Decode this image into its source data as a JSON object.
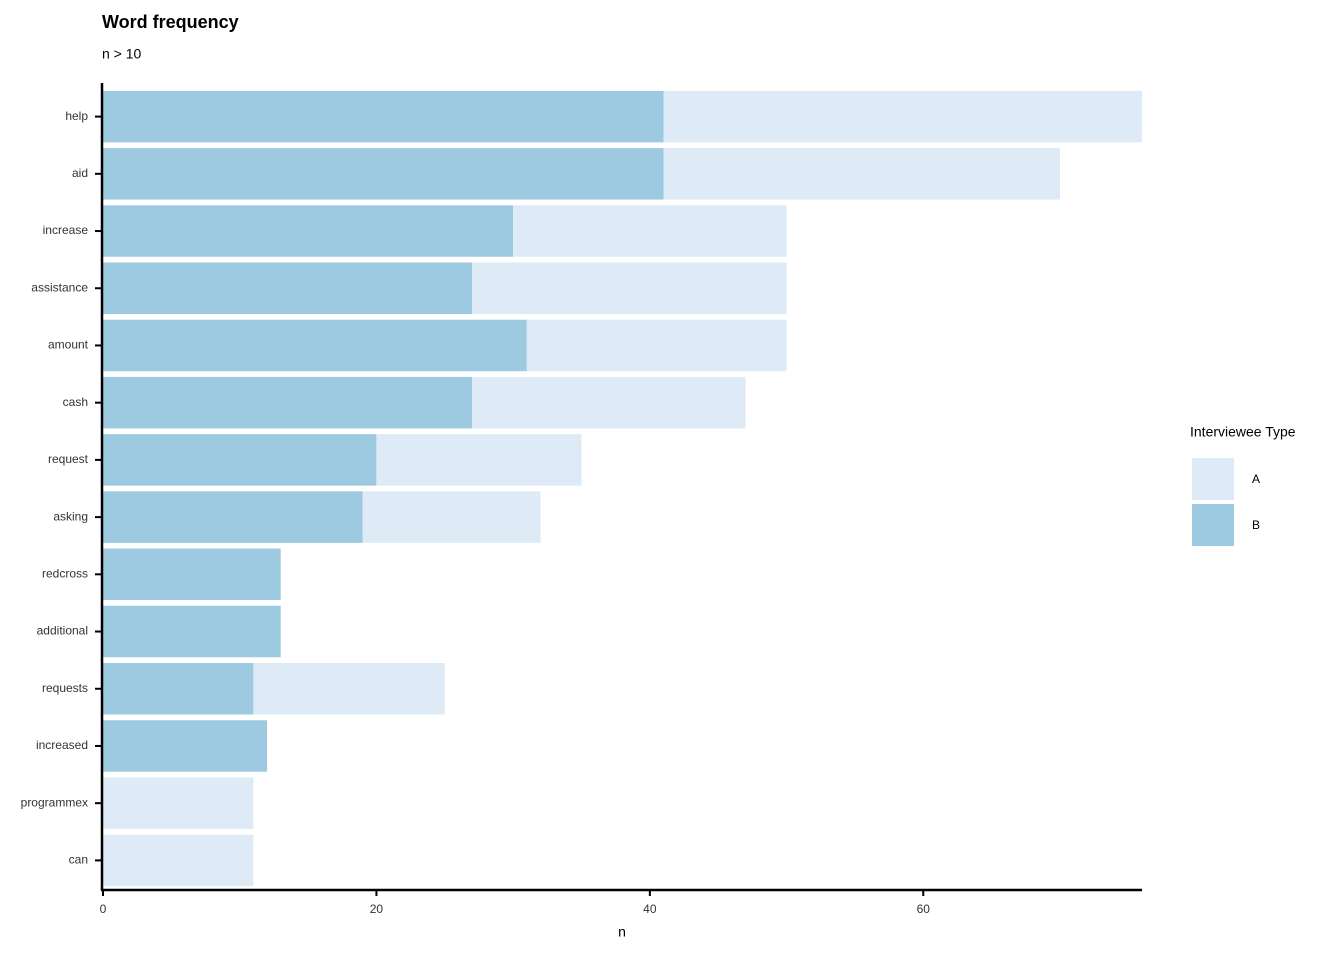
{
  "chart_data": {
    "type": "stacked_bar_horizontal",
    "title": "Word frequency",
    "subtitle": "n > 10",
    "x_label": "n",
    "legend_title": "Interviewee Type",
    "categories": [
      "help",
      "aid",
      "increase",
      "assistance",
      "amount",
      "cash",
      "request",
      "asking",
      "redcross",
      "additional",
      "requests",
      "increased",
      "programmex",
      "can"
    ],
    "series": [
      {
        "name": "A",
        "color": "#deebf7",
        "values": [
          35,
          29,
          20,
          23,
          19,
          20,
          15,
          13,
          0,
          0,
          14,
          0,
          11,
          11
        ]
      },
      {
        "name": "B",
        "color": "#9ecae1",
        "values": [
          41,
          41,
          30,
          27,
          31,
          27,
          20,
          19,
          13,
          13,
          11,
          12,
          0,
          0
        ]
      }
    ],
    "xlim": [
      0,
      76
    ],
    "xticks": [
      0,
      20,
      40,
      60
    ],
    "grid": false
  }
}
